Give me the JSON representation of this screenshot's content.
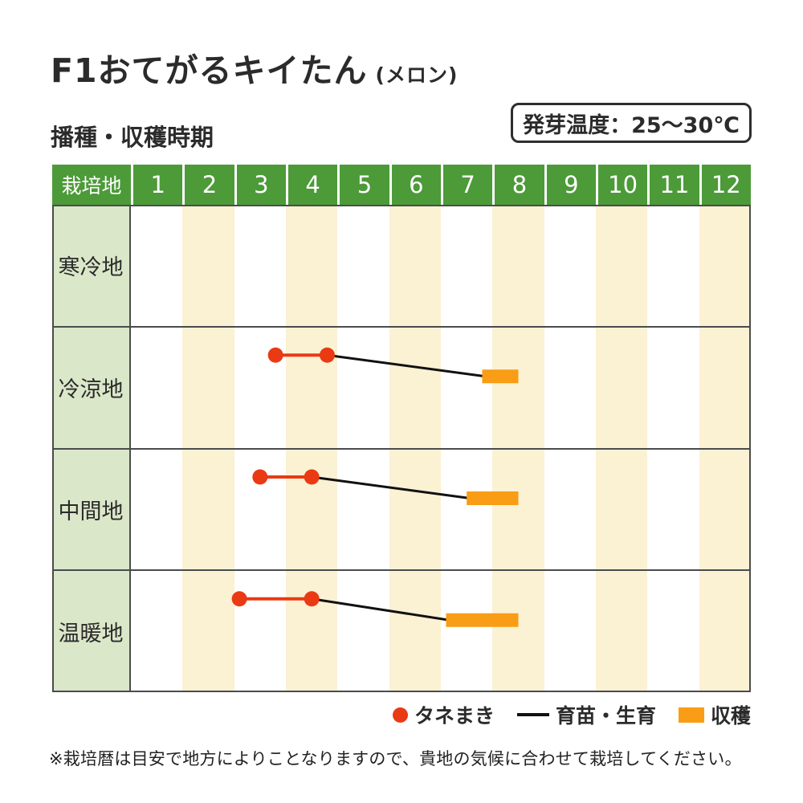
{
  "title": {
    "name": "F1おてがるキイたん",
    "variant": "(メロン)"
  },
  "section_label": "播種・収穫時期",
  "germination": {
    "label": "発芽温度：25～30℃"
  },
  "table": {
    "corner_label": "栽培地",
    "months": [
      "1",
      "2",
      "3",
      "4",
      "5",
      "6",
      "7",
      "8",
      "9",
      "10",
      "11",
      "12"
    ]
  },
  "legend": {
    "items": [
      {
        "icon": "sowing-dot",
        "label": "タネまき"
      },
      {
        "icon": "growth-line",
        "label": "育苗・生育"
      },
      {
        "icon": "harvest-bar",
        "label": "収穫"
      }
    ]
  },
  "footnote": "※栽培暦は目安で地方によりことなりますので、貴地の気候に合わせて栽培してください。",
  "colors": {
    "header_green": "#4c9a38",
    "label_green": "#dbe7c9",
    "stripe_cream": "#fbf1d3",
    "sowing_red": "#e93a14",
    "harvest_orange": "#f89d15",
    "growth_black": "#111111",
    "grid_gray": "#4a4b4d"
  },
  "chart_data": {
    "type": "gantt",
    "title": "播種・収穫時期 (F1おてがるキイたん / メロン)",
    "x_axis": {
      "unit": "month",
      "min": 1,
      "max": 13,
      "ticks": [
        "1",
        "2",
        "3",
        "4",
        "5",
        "6",
        "7",
        "8",
        "9",
        "10",
        "11",
        "12"
      ]
    },
    "row_header": "栽培地",
    "stripe_months": [
      2,
      4,
      6,
      8,
      10,
      12
    ],
    "germination_temp": "25～30℃",
    "rows": [
      {
        "region": "寒冷地",
        "sowing_months": null,
        "growth_months": null,
        "harvest_months": null
      },
      {
        "region": "冷涼地",
        "sowing_months": [
          3.8,
          4.8
        ],
        "growth_months": [
          4.8,
          7.8
        ],
        "harvest_months": [
          7.8,
          8.5
        ]
      },
      {
        "region": "中間地",
        "sowing_months": [
          3.5,
          4.5
        ],
        "growth_months": [
          4.5,
          7.5
        ],
        "harvest_months": [
          7.5,
          8.5
        ]
      },
      {
        "region": "温暖地",
        "sowing_months": [
          3.1,
          4.5
        ],
        "growth_months": [
          4.5,
          7.1
        ],
        "harvest_months": [
          7.1,
          8.5
        ]
      }
    ],
    "series_legend": {
      "sowing": "タネまき",
      "growth": "育苗・生育",
      "harvest": "収穫"
    },
    "legend_position": "bottom-right",
    "grid": "horizontal-row-separators"
  }
}
